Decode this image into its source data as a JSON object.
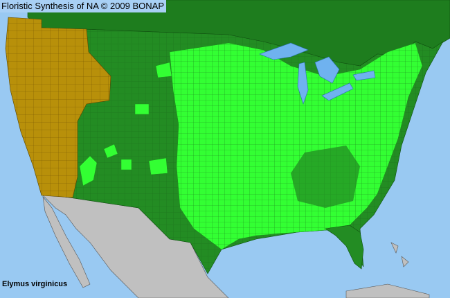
{
  "header": {
    "title": "Floristic Synthesis of NA © 2009 BONAP"
  },
  "species": {
    "name": "Elymus virginicus"
  },
  "legend_colors": {
    "ocean": "#99c9f2",
    "present_in_county": "#33ff33",
    "present_in_state": "#238c23",
    "absent_in_state": "#b8900a",
    "outside_region": "#c0c0c0",
    "canada": "#1e7d1e"
  }
}
